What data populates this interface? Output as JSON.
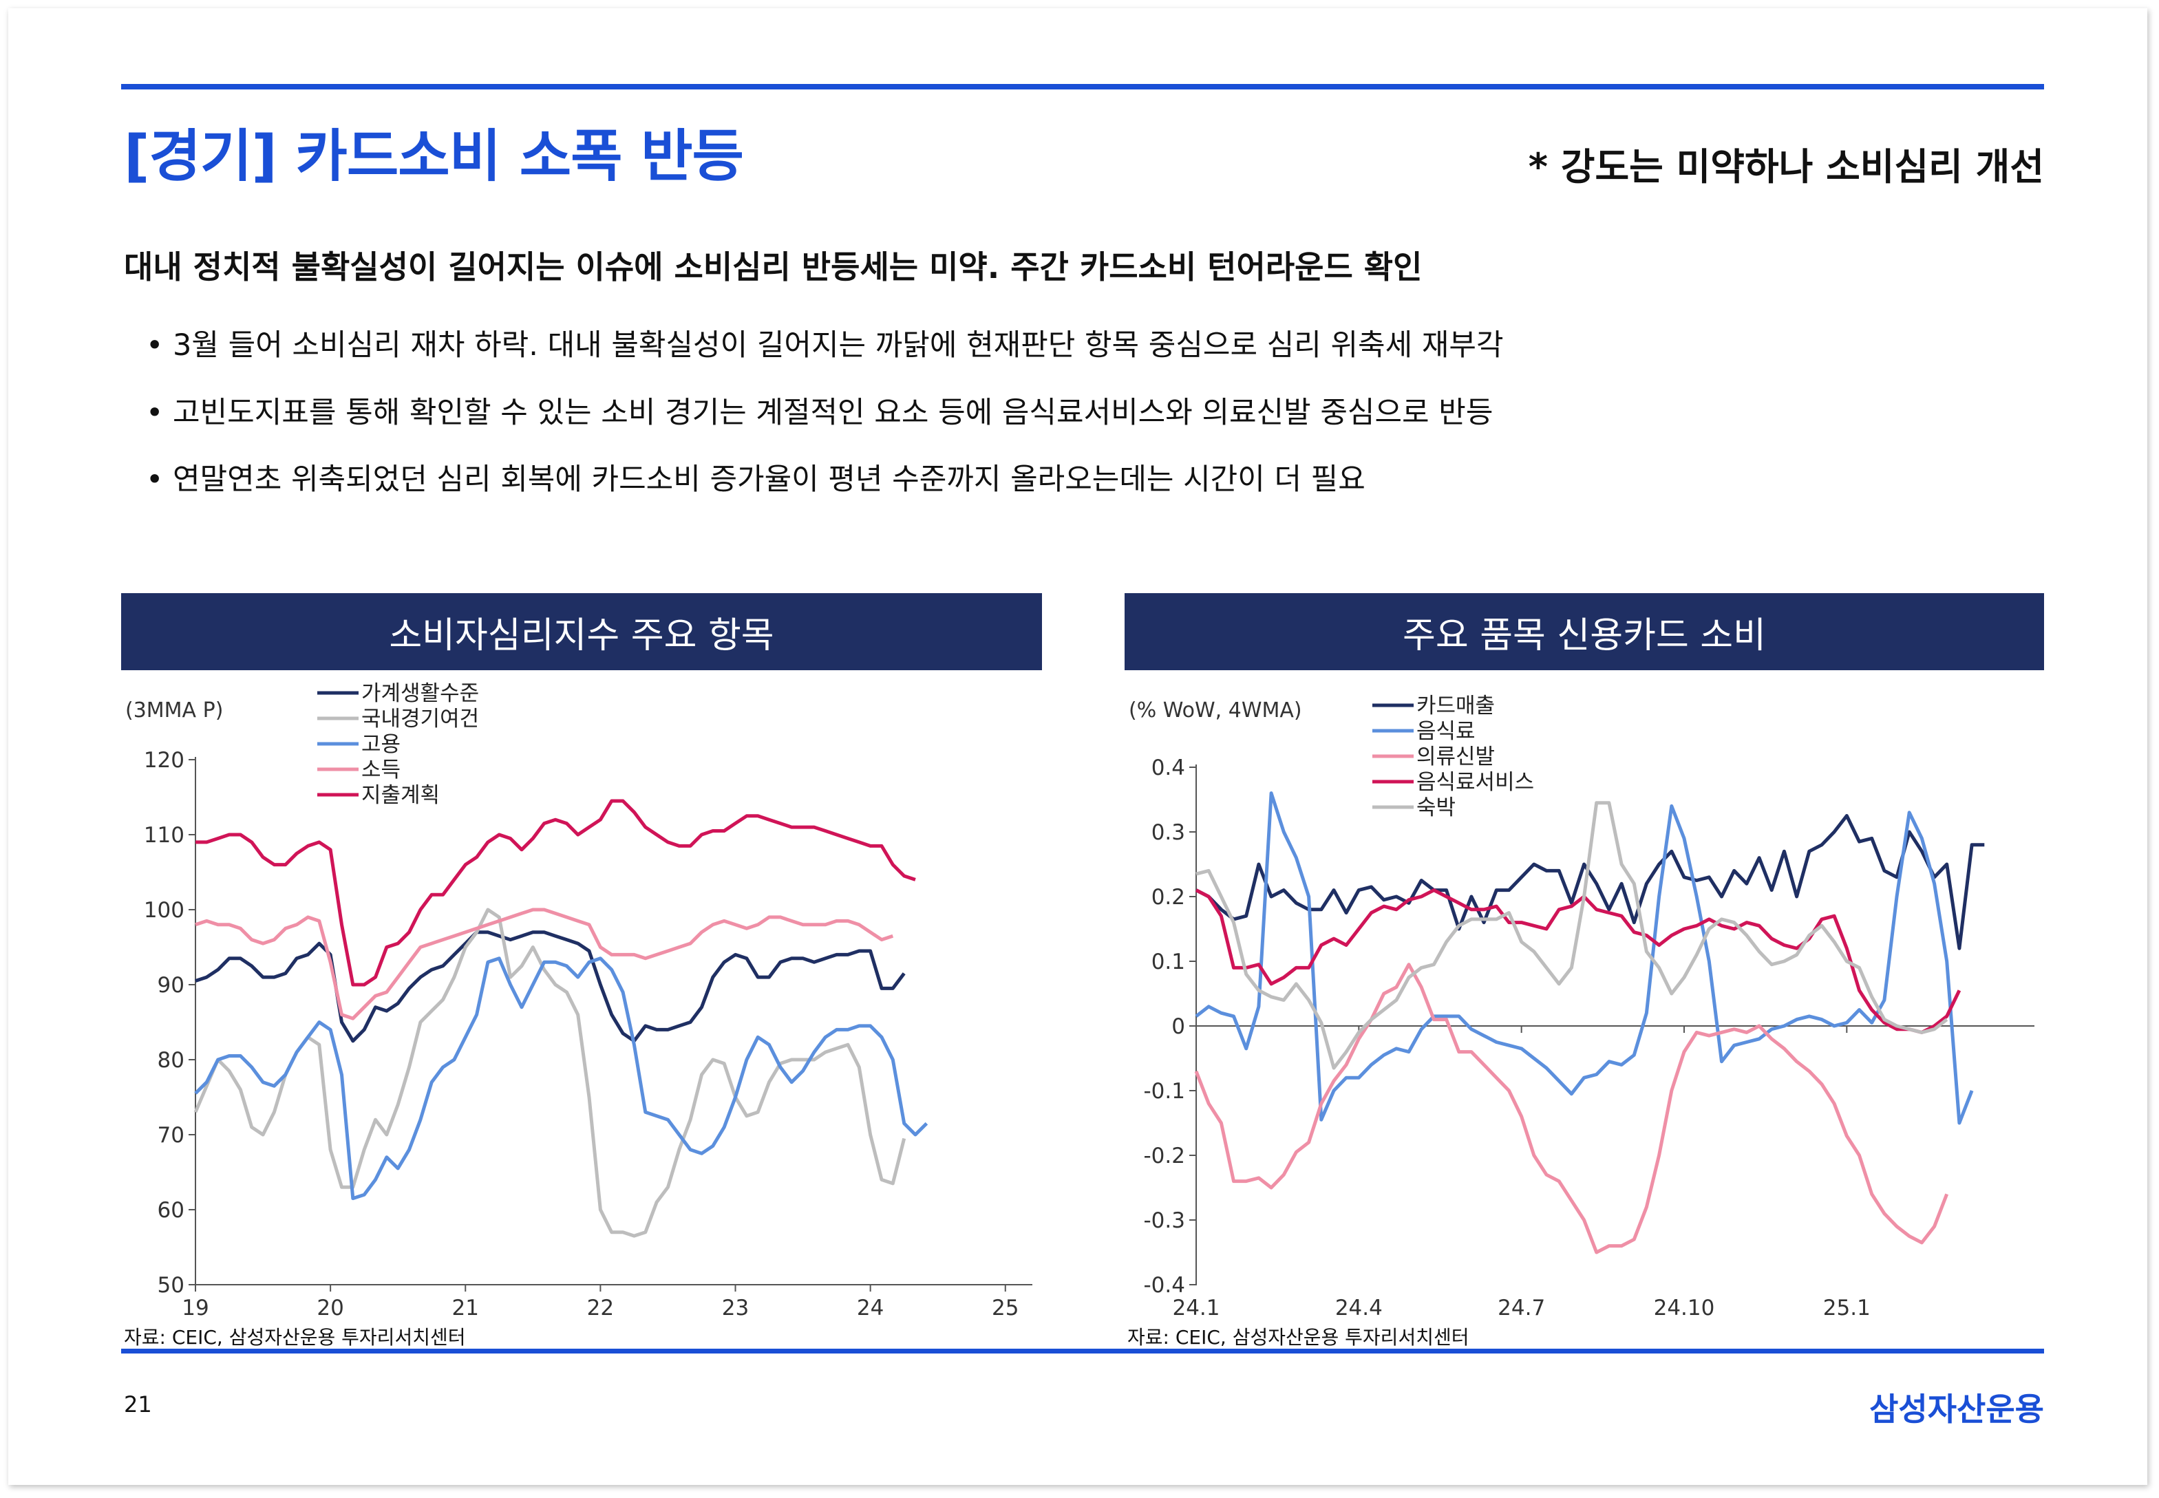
{
  "header": {
    "title": "[경기] 카드소비 소폭 반등",
    "subtitle_right": "* 강도는 미약하나 소비심리 개선"
  },
  "main": {
    "headline": "대내 정치적 불확실성이 길어지는 이슈에 소비심리 반등세는 미약. 주간 카드소비 턴어라운드 확인",
    "bullets": [
      "3월 들어 소비심리 재차 하락. 대내 불확실성이 길어지는 까닭에 현재판단 항목 중심으로 심리 위축세 재부각",
      "고빈도지표를 통해 확인할 수 있는 소비 경기는 계절적인 요소 등에 음식료서비스와 의료신발 중심으로 반등",
      "연말연초 위축되었던 심리 회복에 카드소비 증가율이 평년 수준까지 올라오는데는 시간이 더 필요"
    ]
  },
  "chart_data": [
    {
      "type": "line",
      "title": "소비자심리지수 주요 항목",
      "unit_label": "(3MMA P)",
      "ylim": [
        50,
        120
      ],
      "yticks": [
        "50",
        "60",
        "70",
        "80",
        "90",
        "100",
        "110",
        "120"
      ],
      "xlim": [
        2019.0,
        2025.2
      ],
      "xticks": [
        {
          "v": 2019,
          "label": "19"
        },
        {
          "v": 2020,
          "label": "20"
        },
        {
          "v": 2021,
          "label": "21"
        },
        {
          "v": 2022,
          "label": "22"
        },
        {
          "v": 2023,
          "label": "23"
        },
        {
          "v": 2024,
          "label": "24"
        },
        {
          "v": 2025,
          "label": "25"
        }
      ],
      "legend_position": "top-center",
      "grid": false,
      "source": "자료: CEIC, 삼성자산운용 투자리서치센터",
      "x_start": 2019.0,
      "x_step": 0.0833333,
      "series": [
        {
          "name": "가계생활수준",
          "color": "#1f2f63",
          "values": [
            90.5,
            91,
            92,
            93.5,
            93.5,
            92.5,
            91,
            91,
            91.5,
            93.5,
            94,
            95.5,
            94,
            85,
            82.5,
            84,
            87,
            86.5,
            87.5,
            89.5,
            91,
            92,
            92.5,
            94,
            95.5,
            97,
            97,
            96.5,
            96,
            96.5,
            97,
            97,
            96.5,
            96,
            95.5,
            94.5,
            90,
            86,
            83.5,
            82.5,
            84.5,
            84,
            84,
            84.5,
            85,
            87,
            91,
            93,
            94,
            93.5,
            91,
            91,
            93,
            93.5,
            93.5,
            93,
            93.5,
            94,
            94,
            94.5,
            94.5,
            89.5,
            89.5,
            91.5
          ]
        },
        {
          "name": "국내경기여건",
          "color": "#bdbdbd",
          "values": [
            73,
            76.5,
            80,
            78.5,
            76,
            71,
            70,
            73,
            78,
            81,
            83,
            82,
            68,
            63,
            63,
            68,
            72,
            70,
            74,
            79,
            85,
            86.5,
            88,
            91,
            95,
            97,
            100,
            99,
            91,
            92.5,
            95,
            92,
            90,
            89,
            86,
            75,
            60,
            57,
            57,
            56.5,
            57,
            61,
            63,
            68,
            72,
            78,
            80,
            79.5,
            75,
            72.5,
            73,
            77,
            79.5,
            80,
            80,
            80,
            81,
            81.5,
            82,
            79,
            70,
            64,
            63.5,
            69.5
          ]
        },
        {
          "name": "고용",
          "color": "#5b8fdd",
          "values": [
            75.5,
            77,
            80,
            80.5,
            80.5,
            79,
            77,
            76.5,
            78,
            81,
            83,
            85,
            84,
            78,
            61.5,
            62,
            64,
            67,
            65.5,
            68,
            72,
            77,
            79,
            80,
            83,
            86,
            93,
            93.5,
            90,
            87,
            90,
            93,
            93,
            92.5,
            91,
            93,
            93.5,
            92,
            89,
            82,
            73,
            72.5,
            72,
            70,
            68,
            67.5,
            68.5,
            71,
            75,
            80,
            83,
            82,
            79,
            77,
            78.5,
            81,
            83,
            84,
            84,
            84.5,
            84.5,
            83,
            80,
            71.5,
            70,
            71.5
          ]
        },
        {
          "name": "소득",
          "color": "#ef8fa6",
          "values": [
            98,
            98.5,
            98,
            98,
            97.5,
            96,
            95.5,
            96,
            97.5,
            98,
            99,
            98.5,
            93,
            86,
            85.5,
            87,
            88.5,
            89,
            91,
            93,
            95,
            95.5,
            96,
            96.5,
            97,
            97.5,
            98,
            98.5,
            99,
            99.5,
            100,
            100,
            99.5,
            99,
            98.5,
            98,
            95,
            94,
            94,
            94,
            93.5,
            94,
            94.5,
            95,
            95.5,
            97,
            98,
            98.5,
            98,
            97.5,
            98,
            99,
            99,
            98.5,
            98,
            98,
            98,
            98.5,
            98.5,
            98,
            97,
            96,
            96.5
          ]
        },
        {
          "name": "지출계획",
          "color": "#d01457",
          "values": [
            109,
            109,
            109.5,
            110,
            110,
            109,
            107,
            106,
            106,
            107.5,
            108.5,
            109,
            108,
            98,
            90,
            90,
            91,
            95,
            95.5,
            97,
            100,
            102,
            102,
            104,
            106,
            107,
            109,
            110,
            109.5,
            108,
            109.5,
            111.5,
            112,
            111.5,
            110,
            111,
            112,
            114.5,
            114.5,
            113,
            111,
            110,
            109,
            108.5,
            108.5,
            110,
            110.5,
            110.5,
            111.5,
            112.5,
            112.5,
            112,
            111.5,
            111,
            111,
            111,
            110.5,
            110,
            109.5,
            109,
            108.5,
            108.5,
            106,
            104.5,
            104
          ]
        }
      ]
    },
    {
      "type": "line",
      "title": "주요 품목 신용카드 소비",
      "unit_label": "(% WoW, 4WMA)",
      "ylim": [
        -0.4,
        0.4
      ],
      "yticks": [
        "-0.4",
        "-0.3",
        "-0.2",
        "-0.1",
        "0",
        "0.1",
        "0.2",
        "0.3",
        "0.4"
      ],
      "xlim": [
        0,
        67
      ],
      "xticks": [
        {
          "v": 0,
          "label": "24.1"
        },
        {
          "v": 13,
          "label": "24.4"
        },
        {
          "v": 26,
          "label": "24.7"
        },
        {
          "v": 39,
          "label": "24.10"
        },
        {
          "v": 52,
          "label": "25.1"
        }
      ],
      "legend_position": "top-center",
      "grid": false,
      "source": "자료: CEIC, 삼성자산운용 투자리서치센터",
      "x_start": 0,
      "x_step": 1,
      "series": [
        {
          "name": "카드매출",
          "color": "#1f2f63",
          "values": [
            0.21,
            0.2,
            0.18,
            0.165,
            0.17,
            0.25,
            0.2,
            0.21,
            0.19,
            0.18,
            0.18,
            0.21,
            0.175,
            0.21,
            0.215,
            0.195,
            0.2,
            0.19,
            0.225,
            0.21,
            0.21,
            0.15,
            0.2,
            0.16,
            0.21,
            0.21,
            0.23,
            0.25,
            0.24,
            0.24,
            0.19,
            0.25,
            0.22,
            0.18,
            0.22,
            0.16,
            0.22,
            0.25,
            0.27,
            0.23,
            0.225,
            0.23,
            0.2,
            0.24,
            0.22,
            0.26,
            0.21,
            0.27,
            0.2,
            0.27,
            0.28,
            0.3,
            0.325,
            0.285,
            0.29,
            0.24,
            0.23,
            0.3,
            0.27,
            0.23,
            0.25,
            0.12,
            0.28,
            0.28
          ]
        },
        {
          "name": "음식료",
          "color": "#5b8fdd",
          "values": [
            0.015,
            0.03,
            0.02,
            0.015,
            -0.035,
            0.03,
            0.36,
            0.3,
            0.26,
            0.2,
            -0.145,
            -0.1,
            -0.08,
            -0.08,
            -0.06,
            -0.045,
            -0.035,
            -0.04,
            -0.005,
            0.015,
            0.015,
            0.015,
            -0.005,
            -0.015,
            -0.025,
            -0.03,
            -0.035,
            -0.05,
            -0.065,
            -0.085,
            -0.105,
            -0.08,
            -0.075,
            -0.055,
            -0.06,
            -0.045,
            0.02,
            0.2,
            0.34,
            0.29,
            0.2,
            0.1,
            -0.055,
            -0.03,
            -0.025,
            -0.02,
            -0.005,
            0.0,
            0.01,
            0.015,
            0.01,
            0.0,
            0.005,
            0.025,
            0.005,
            0.04,
            0.2,
            0.33,
            0.29,
            0.22,
            0.1,
            -0.15,
            -0.1
          ]
        },
        {
          "name": "의류신발",
          "color": "#ef8fa6",
          "values": [
            -0.07,
            -0.12,
            -0.15,
            -0.24,
            -0.24,
            -0.235,
            -0.25,
            -0.23,
            -0.195,
            -0.18,
            -0.12,
            -0.085,
            -0.06,
            -0.02,
            0.01,
            0.05,
            0.06,
            0.095,
            0.06,
            0.01,
            0.01,
            -0.04,
            -0.04,
            -0.06,
            -0.08,
            -0.1,
            -0.14,
            -0.2,
            -0.23,
            -0.24,
            -0.27,
            -0.3,
            -0.35,
            -0.34,
            -0.34,
            -0.33,
            -0.28,
            -0.2,
            -0.1,
            -0.04,
            -0.01,
            -0.015,
            -0.01,
            -0.005,
            -0.01,
            0.0,
            -0.02,
            -0.035,
            -0.055,
            -0.07,
            -0.09,
            -0.12,
            -0.17,
            -0.2,
            -0.26,
            -0.29,
            -0.31,
            -0.325,
            -0.335,
            -0.31,
            -0.26
          ]
        },
        {
          "name": "음식료서비스",
          "color": "#d01457",
          "values": [
            0.21,
            0.2,
            0.17,
            0.09,
            0.09,
            0.095,
            0.065,
            0.075,
            0.09,
            0.09,
            0.125,
            0.135,
            0.125,
            0.15,
            0.175,
            0.185,
            0.18,
            0.195,
            0.2,
            0.21,
            0.2,
            0.19,
            0.18,
            0.18,
            0.185,
            0.16,
            0.16,
            0.155,
            0.15,
            0.18,
            0.185,
            0.2,
            0.18,
            0.175,
            0.17,
            0.145,
            0.14,
            0.125,
            0.14,
            0.15,
            0.155,
            0.165,
            0.155,
            0.15,
            0.16,
            0.155,
            0.135,
            0.125,
            0.12,
            0.135,
            0.165,
            0.17,
            0.12,
            0.055,
            0.025,
            0.005,
            -0.005,
            -0.005,
            -0.01,
            0.0,
            0.015,
            0.055
          ]
        },
        {
          "name": "숙박",
          "color": "#bdbdbd",
          "values": [
            0.235,
            0.24,
            0.2,
            0.16,
            0.08,
            0.055,
            0.045,
            0.04,
            0.065,
            0.04,
            0.005,
            -0.065,
            -0.04,
            -0.01,
            0.01,
            0.025,
            0.04,
            0.075,
            0.09,
            0.095,
            0.13,
            0.155,
            0.165,
            0.165,
            0.165,
            0.175,
            0.13,
            0.115,
            0.09,
            0.065,
            0.09,
            0.2,
            0.345,
            0.345,
            0.25,
            0.22,
            0.115,
            0.09,
            0.05,
            0.075,
            0.11,
            0.15,
            0.165,
            0.16,
            0.14,
            0.115,
            0.095,
            0.1,
            0.11,
            0.14,
            0.155,
            0.13,
            0.1,
            0.09,
            0.045,
            0.01,
            0.0,
            -0.005,
            -0.01,
            -0.005,
            0.01
          ]
        }
      ]
    }
  ],
  "footer": {
    "page_number": "21",
    "brand": "삼성자산운용"
  }
}
